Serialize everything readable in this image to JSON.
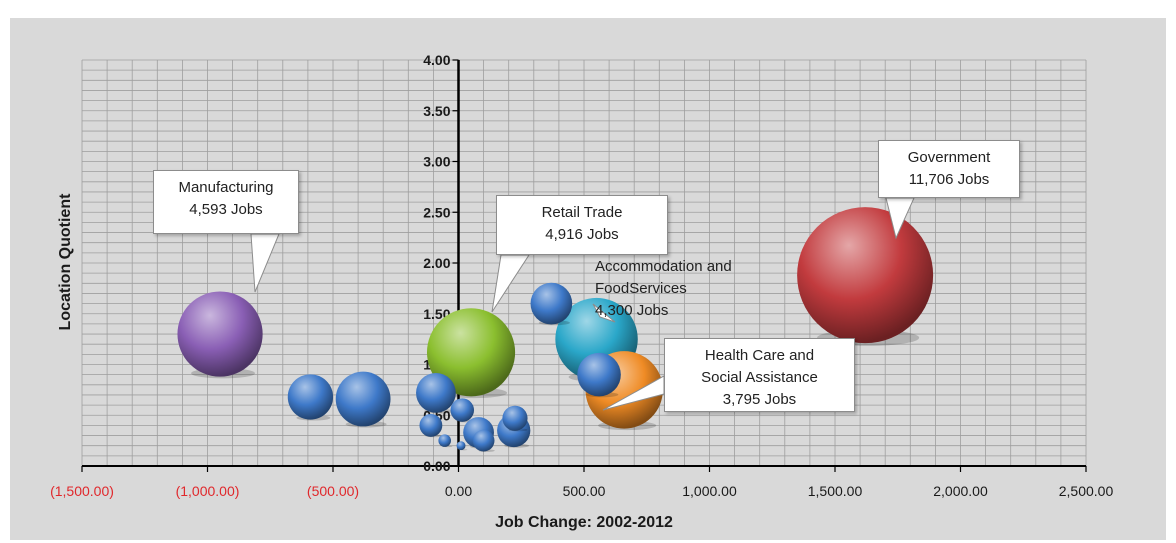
{
  "colors": {
    "background": "#d9d9d9",
    "gridline": "#9e9e9e",
    "axis": "#000000",
    "negative_tick": "#e0282c",
    "tick": "#1a1a1a",
    "government": "#c23b3e",
    "manufacturing": "#8a5fb5",
    "retail": "#8bbf2f",
    "accommodation": "#2aa7c9",
    "health": "#ef8b25",
    "other": "#3e79c9"
  },
  "chart_data": {
    "type": "bubble",
    "xlabel": "Job Change: 2002-2012",
    "ylabel": "Location Quotient",
    "xlim": [
      -1500,
      2500
    ],
    "ylim": [
      0,
      4
    ],
    "x_ticks": [
      "(1,500.00)",
      "(1,000.00)",
      "(500.00)",
      "0.00",
      "500.00",
      "1,000.00",
      "1,500.00",
      "2,000.00",
      "2,500.00"
    ],
    "y_ticks": [
      "0.00",
      "0.50",
      "1.00",
      "1.50",
      "2.00",
      "2.50",
      "3.00",
      "3.50",
      "4.00"
    ],
    "grid": true,
    "bubbles": [
      {
        "x": 1620,
        "y": 1.88,
        "size": 11706,
        "color": "government"
      },
      {
        "x": -950,
        "y": 1.3,
        "size": 4593,
        "color": "manufacturing"
      },
      {
        "x": 50,
        "y": 1.12,
        "size": 4916,
        "color": "retail"
      },
      {
        "x": 550,
        "y": 1.25,
        "size": 4300,
        "color": "accommodation"
      },
      {
        "x": 660,
        "y": 0.75,
        "size": 3795,
        "color": "health"
      },
      {
        "x": 560,
        "y": 0.9,
        "size": 1200,
        "color": "other"
      },
      {
        "x": 370,
        "y": 1.6,
        "size": 1100,
        "color": "other"
      },
      {
        "x": -380,
        "y": 0.66,
        "size": 1900,
        "color": "other"
      },
      {
        "x": -590,
        "y": 0.68,
        "size": 1300,
        "color": "other"
      },
      {
        "x": -90,
        "y": 0.72,
        "size": 1000,
        "color": "other"
      },
      {
        "x": 15,
        "y": 0.55,
        "size": 350,
        "color": "other"
      },
      {
        "x": -110,
        "y": 0.4,
        "size": 330,
        "color": "other"
      },
      {
        "x": 80,
        "y": 0.33,
        "size": 600,
        "color": "other"
      },
      {
        "x": 100,
        "y": 0.25,
        "size": 300,
        "color": "other"
      },
      {
        "x": 220,
        "y": 0.35,
        "size": 700,
        "color": "other"
      },
      {
        "x": 225,
        "y": 0.47,
        "size": 400,
        "color": "other"
      },
      {
        "x": -55,
        "y": 0.25,
        "size": 100,
        "color": "other"
      },
      {
        "x": 10,
        "y": 0.2,
        "size": 50,
        "color": "other"
      }
    ],
    "callouts": [
      {
        "lines": [
          "Government",
          "11,706 Jobs"
        ]
      },
      {
        "lines": [
          "Manufacturing",
          "4,593 Jobs"
        ]
      },
      {
        "lines": [
          "Retail Trade",
          "4,916 Jobs"
        ]
      },
      {
        "lines": [
          "Accommodation and",
          "FoodServices",
          "4,300 Jobs"
        ]
      },
      {
        "lines": [
          "Health Care and",
          "Social Assistance",
          "3,795 Jobs"
        ]
      }
    ]
  }
}
